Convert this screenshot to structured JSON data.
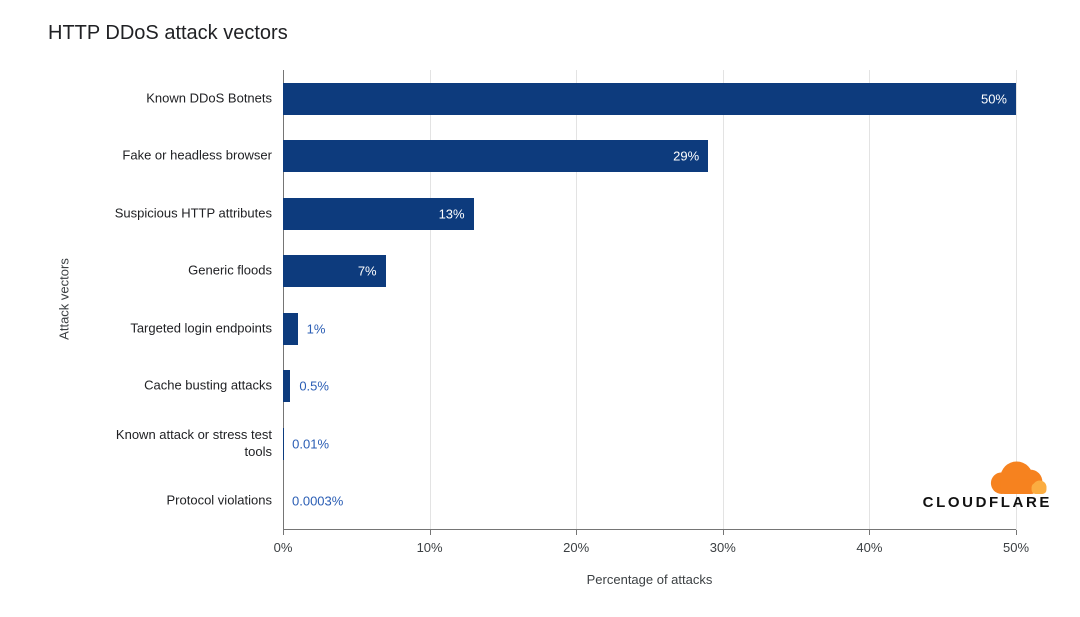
{
  "title": "HTTP DDoS attack vectors",
  "chart_data": {
    "type": "bar",
    "orientation": "horizontal",
    "title": "HTTP DDoS attack vectors",
    "categories": [
      "Known DDoS Botnets",
      "Fake or headless browser",
      "Suspicious HTTP attributes",
      "Generic floods",
      "Targeted login endpoints",
      "Cache busting attacks",
      "Known attack or stress test\ntools",
      "Protocol violations"
    ],
    "values": [
      50,
      29,
      13,
      7,
      1,
      0.5,
      0.01,
      0.0003
    ],
    "value_labels": [
      "50%",
      "29%",
      "13%",
      "7%",
      "1%",
      "0.5%",
      "0.01%",
      "0.0003%"
    ],
    "xlabel": "Percentage of attacks",
    "ylabel": "Attack vectors",
    "xlim": [
      0,
      50
    ],
    "x_ticks": [
      "0%",
      "10%",
      "20%",
      "30%",
      "40%",
      "50%"
    ],
    "grid": true,
    "legend": "none"
  },
  "colors": {
    "bar": "#0d3b7d",
    "value_label_inside": "#ffffff",
    "value_label_outside": "#2a5db4",
    "axis": "#757575",
    "gridline": "#e3e3e3",
    "tick_text": "#3c4043",
    "title": "#202124",
    "logo_orange": "#f6821f",
    "logo_light_orange": "#fbad41",
    "logo_text": "#111111"
  },
  "logo": {
    "text": "CLOUDFLARE"
  }
}
